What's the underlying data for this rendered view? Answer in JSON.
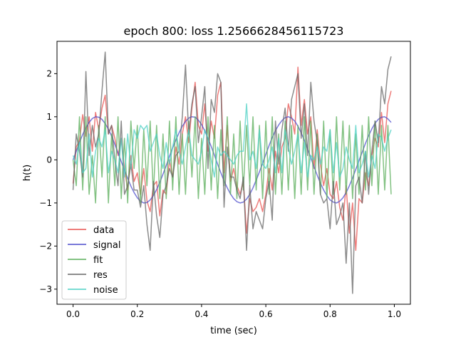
{
  "chart_data": {
    "type": "line",
    "title": "epoch 800: loss 1.2566628456115723",
    "xlabel": "time (sec)",
    "ylabel": "h(t)",
    "xlim": [
      -0.05,
      1.05
    ],
    "ylim": [
      -3.35,
      2.75
    ],
    "xticks": [
      0.0,
      0.2,
      0.4,
      0.6,
      0.8,
      1.0
    ],
    "xtick_labels": [
      "0.0",
      "0.2",
      "0.4",
      "0.6",
      "0.8",
      "1.0"
    ],
    "yticks": [
      -3,
      -2,
      -1,
      0,
      1,
      2
    ],
    "ytick_labels": [
      "−3",
      "−2",
      "−1",
      "0",
      "1",
      "2"
    ],
    "grid": false,
    "legend_position": "lower-left",
    "x": [
      0.0,
      0.01,
      0.02,
      0.03,
      0.04,
      0.05,
      0.06,
      0.07,
      0.08,
      0.09,
      0.1,
      0.11,
      0.12,
      0.13,
      0.14,
      0.15,
      0.16,
      0.17,
      0.18,
      0.19,
      0.2,
      0.21,
      0.22,
      0.23,
      0.24,
      0.25,
      0.26,
      0.27,
      0.28,
      0.29,
      0.3,
      0.31,
      0.32,
      0.33,
      0.34,
      0.35,
      0.36,
      0.37,
      0.38,
      0.39,
      0.4,
      0.41,
      0.42,
      0.43,
      0.44,
      0.45,
      0.46,
      0.47,
      0.48,
      0.49,
      0.5,
      0.51,
      0.52,
      0.53,
      0.54,
      0.55,
      0.56,
      0.57,
      0.58,
      0.59,
      0.6,
      0.61,
      0.62,
      0.63,
      0.64,
      0.65,
      0.66,
      0.67,
      0.68,
      0.69,
      0.7,
      0.71,
      0.72,
      0.73,
      0.74,
      0.75,
      0.76,
      0.77,
      0.78,
      0.79,
      0.8,
      0.81,
      0.82,
      0.83,
      0.84,
      0.85,
      0.86,
      0.87,
      0.88,
      0.89,
      0.9,
      0.91,
      0.92,
      0.93,
      0.94,
      0.95,
      0.96,
      0.97,
      0.98,
      0.99
    ],
    "series": [
      {
        "name": "data",
        "color": "#e8524f",
        "values": [
          -0.55,
          0.3,
          0.45,
          1.05,
          0.55,
          1.0,
          0.2,
          1.1,
          0.7,
          1.2,
          1.5,
          0.6,
          0.8,
          0.5,
          0.1,
          0.5,
          -0.2,
          -0.7,
          0.1,
          -0.5,
          -0.3,
          -0.8,
          -0.2,
          -0.95,
          -1.2,
          -0.6,
          -0.5,
          -1.3,
          -0.7,
          -0.8,
          0.0,
          -0.4,
          0.3,
          -0.1,
          0.6,
          1.0,
          0.4,
          1.2,
          1.8,
          0.8,
          0.6,
          1.3,
          0.2,
          0.9,
          0.5,
          1.5,
          1.8,
          -0.3,
          0.8,
          -0.5,
          -0.2,
          -0.6,
          -0.8,
          -0.5,
          -1.7,
          -0.9,
          -1.2,
          -1.1,
          -0.9,
          -1.2,
          -0.8,
          -0.2,
          -0.7,
          0.2,
          -0.3,
          0.3,
          0.5,
          1.3,
          1.0,
          0.6,
          2.15,
          0.8,
          1.4,
          0.6,
          1.0,
          -0.2,
          0.7,
          -0.1,
          -0.6,
          -0.2,
          -0.8,
          -0.9,
          -0.5,
          -1.1,
          -1.4,
          -0.6,
          -1.7,
          -1.0,
          -2.1,
          -0.9,
          -1.0,
          -0.3,
          -0.6,
          0.1,
          0.5,
          0.3,
          1.1,
          0.4,
          1.3,
          1.6
        ]
      },
      {
        "name": "signal",
        "color": "#4c4ccc",
        "values": [
          0.0,
          0.2,
          0.4,
          0.59,
          0.74,
          0.87,
          0.96,
          1.0,
          0.99,
          0.94,
          0.84,
          0.71,
          0.55,
          0.36,
          0.16,
          -0.04,
          -0.24,
          -0.43,
          -0.61,
          -0.76,
          -0.88,
          -0.96,
          -1.0,
          -0.99,
          -0.93,
          -0.83,
          -0.69,
          -0.52,
          -0.33,
          -0.13,
          0.08,
          0.28,
          0.46,
          0.63,
          0.78,
          0.89,
          0.97,
          1.0,
          0.99,
          0.92,
          0.82,
          0.67,
          0.5,
          0.31,
          0.11,
          -0.1,
          -0.3,
          -0.49,
          -0.65,
          -0.79,
          -0.9,
          -0.97,
          -1.0,
          -0.98,
          -0.91,
          -0.8,
          -0.65,
          -0.47,
          -0.28,
          -0.08,
          0.13,
          0.33,
          0.52,
          0.68,
          0.81,
          0.91,
          0.98,
          1.0,
          0.97,
          0.9,
          0.78,
          0.63,
          0.45,
          0.25,
          0.05,
          -0.16,
          -0.36,
          -0.54,
          -0.7,
          -0.83,
          -0.93,
          -0.98,
          -1.0,
          -0.96,
          -0.88,
          -0.76,
          -0.6,
          -0.42,
          -0.22,
          -0.02,
          0.18,
          0.38,
          0.56,
          0.72,
          0.85,
          0.94,
          0.99,
          1.0,
          0.95,
          0.87
        ]
      },
      {
        "name": "fit",
        "color": "#5aad5a",
        "values": [
          0.0,
          -0.6,
          1.0,
          -0.7,
          1.0,
          -0.8,
          0.1,
          -1.0,
          0.8,
          -0.4,
          1.0,
          -1.0,
          0.6,
          -0.6,
          1.0,
          -0.9,
          0.5,
          -1.0,
          0.9,
          -0.2,
          0.8,
          -1.0,
          0.7,
          -0.6,
          0.9,
          -0.8,
          0.8,
          -0.9,
          0.6,
          -0.9,
          0.9,
          -0.7,
          1.0,
          -0.8,
          0.6,
          -0.8,
          0.9,
          -0.4,
          1.0,
          -0.9,
          0.5,
          -0.8,
          1.0,
          -0.7,
          0.8,
          -0.9,
          0.7,
          -0.6,
          1.0,
          -0.8,
          0.6,
          -0.9,
          0.9,
          -0.7,
          0.8,
          -0.6,
          1.0,
          -0.7,
          0.8,
          -0.9,
          0.9,
          -0.8,
          1.0,
          -0.8,
          0.6,
          -0.8,
          0.9,
          -0.7,
          0.8,
          -0.9,
          0.8,
          -0.8,
          1.0,
          -0.7,
          0.9,
          -0.8,
          0.6,
          -0.8,
          0.9,
          -0.9,
          0.7,
          -0.8,
          1.0,
          -0.7,
          0.9,
          -0.8,
          0.8,
          -0.9,
          0.6,
          -0.8,
          0.8,
          -0.7,
          1.0,
          -0.6,
          0.9,
          -0.8,
          0.8,
          -0.7,
          0.8,
          -0.8
        ]
      },
      {
        "name": "res",
        "color": "#666666",
        "values": [
          -0.7,
          0.6,
          0.2,
          -0.4,
          2.05,
          0.1,
          0.8,
          0.3,
          0.6,
          1.6,
          2.5,
          0.6,
          0.8,
          0.0,
          -0.6,
          0.9,
          -0.8,
          -0.6,
          -0.1,
          -0.7,
          -0.7,
          -1.1,
          -0.6,
          -1.5,
          -2.1,
          -0.5,
          -1.3,
          -1.8,
          -0.8,
          -0.6,
          -0.2,
          -0.4,
          0.1,
          0.2,
          1.0,
          2.2,
          0.6,
          1.3,
          1.7,
          0.4,
          1.0,
          1.7,
          -0.2,
          1.4,
          1.1,
          2.0,
          1.8,
          -1.1,
          0.3,
          -0.4,
          -0.4,
          -0.7,
          -0.9,
          -0.4,
          -2.1,
          -0.6,
          -1.6,
          -1.2,
          -1.4,
          -1.6,
          -0.9,
          -0.5,
          -1.4,
          0.9,
          -0.1,
          0.7,
          1.2,
          0.2,
          1.4,
          1.7,
          2.0,
          0.5,
          1.3,
          0.1,
          1.8,
          0.9,
          0.4,
          -0.8,
          -1.0,
          -0.9,
          -1.6,
          -0.5,
          -1.5,
          -1.3,
          -1.0,
          -2.4,
          -1.0,
          -3.1,
          -0.6,
          -0.4,
          -1.0,
          0.2,
          -0.8,
          0.2,
          0.9,
          0.4,
          1.7,
          1.3,
          2.1,
          2.4
        ]
      },
      {
        "name": "noise",
        "color": "#4dd0c4",
        "values": [
          0.1,
          -0.1,
          0.4,
          -0.3,
          -0.2,
          0.6,
          -0.4,
          0.2,
          0.5,
          0.3,
          0.7,
          -0.3,
          0.2,
          0.0,
          -0.3,
          0.5,
          -0.4,
          0.6,
          -0.2,
          0.7,
          0.5,
          0.8,
          0.7,
          0.8,
          0.2,
          0.4,
          0.6,
          0.1,
          -0.2,
          0.4,
          -0.1,
          0.3,
          0.7,
          0.2,
          -0.1,
          0.3,
          0.7,
          0.1,
          0.0,
          -0.1,
          0.2,
          0.7,
          0.5,
          0.0,
          -0.4,
          0.3,
          0.1,
          0.2,
          0.1,
          0.0,
          -0.1,
          0.1,
          0.2,
          0.2,
          1.3,
          0.0,
          0.2,
          -0.2,
          0.7,
          -0.1,
          -0.2,
          0.0,
          0.3,
          -0.3,
          0.5,
          -0.3,
          0.7,
          0.3,
          -0.1,
          0.2,
          0.6,
          -0.3,
          0.4,
          -0.4,
          0.1,
          0.0,
          0.3,
          -0.1,
          0.3,
          0.2,
          0.7,
          -0.3,
          0.4,
          -0.4,
          -0.2,
          0.3,
          0.0,
          -0.2,
          0.8,
          -0.3,
          -0.1,
          0.2,
          -0.4,
          0.1,
          -0.2,
          0.6,
          0.5,
          0.2,
          0.5,
          0.7
        ]
      }
    ]
  }
}
